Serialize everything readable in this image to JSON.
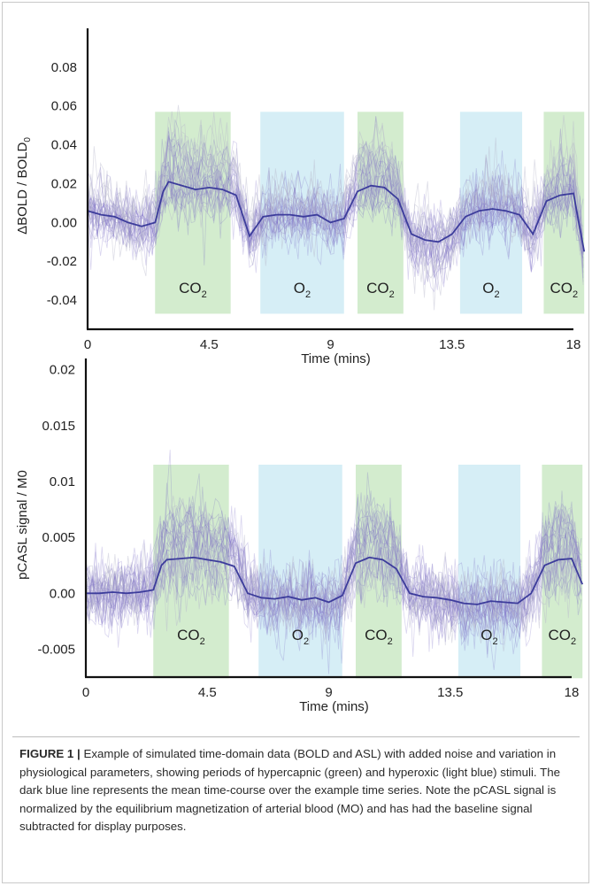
{
  "chart_data": [
    {
      "type": "line",
      "panel": "bold",
      "ylabel": "ΔBOLD / BOLD",
      "ylabel_sub": "0",
      "xlabel": "Time (mins)",
      "xlim": [
        0,
        18
      ],
      "ylim": [
        -0.055,
        0.1
      ],
      "xticks": [
        0,
        4.5,
        9,
        13.5,
        18
      ],
      "xtick_labels": [
        "0",
        "4.5",
        "9",
        "13.5",
        "18"
      ],
      "yticks": [
        -0.04,
        -0.02,
        0.0,
        0.02,
        0.04,
        0.06,
        0.08
      ],
      "ytick_labels": [
        "-0.04",
        "-0.02",
        "0.00",
        "0.02",
        "0.04",
        "0.06",
        "0.08"
      ],
      "stimuli_ylim": [
        -0.047,
        0.057
      ],
      "stimuli": [
        {
          "label": "CO",
          "sub": "2",
          "start": 2.5,
          "end": 5.3,
          "color": "#d3ecce"
        },
        {
          "label": "O",
          "sub": "2",
          "start": 6.4,
          "end": 9.5,
          "color": "#d6eef6"
        },
        {
          "label": "CO",
          "sub": "2",
          "start": 10.0,
          "end": 11.7,
          "color": "#d3ecce"
        },
        {
          "label": "O",
          "sub": "2",
          "start": 13.8,
          "end": 16.1,
          "color": "#d6eef6"
        },
        {
          "label": "CO",
          "sub": "2",
          "start": 16.9,
          "end": 18.4,
          "color": "#d3ecce"
        }
      ],
      "series": [
        {
          "x": [
            0,
            0.5,
            1,
            1.5,
            2,
            2.5,
            2.8,
            3.0,
            3.5,
            4,
            4.5,
            5,
            5.5,
            6,
            6.5,
            7,
            7.5,
            8,
            8.5,
            9,
            9.5,
            10,
            10.5,
            11,
            11.5,
            12,
            12.5,
            13,
            13.5,
            14,
            14.5,
            15,
            15.5,
            16,
            16.5,
            17,
            17.5,
            18,
            18.4
          ],
          "values": [
            0.006,
            0.004,
            0.003,
            0.0,
            -0.002,
            0.0,
            0.016,
            0.021,
            0.019,
            0.017,
            0.018,
            0.017,
            0.014,
            -0.007,
            0.003,
            0.004,
            0.004,
            0.003,
            0.004,
            0.0,
            0.002,
            0.016,
            0.019,
            0.018,
            0.012,
            -0.006,
            -0.009,
            -0.01,
            -0.006,
            0.003,
            0.006,
            0.007,
            0.006,
            0.004,
            -0.006,
            0.011,
            0.014,
            0.015,
            -0.015
          ],
          "color": "#3c3c9b"
        }
      ]
    },
    {
      "type": "line",
      "panel": "asl",
      "ylabel": "pCASL signal / M0",
      "xlabel": "Time (mins)",
      "xlim": [
        0,
        18
      ],
      "ylim": [
        -0.0075,
        0.021
      ],
      "xticks": [
        0,
        4.5,
        9,
        13.5,
        18
      ],
      "xtick_labels": [
        "0",
        "4.5",
        "9",
        "13.5",
        "18"
      ],
      "yticks": [
        -0.005,
        0.0,
        0.005,
        0.01,
        0.015,
        0.02
      ],
      "ytick_labels": [
        "-0.005",
        "0.00",
        "0.005",
        "0.01",
        "0.015",
        "0.02"
      ],
      "stimuli_ylim": [
        -0.0076,
        0.0115
      ],
      "stimuli": [
        {
          "label": "CO",
          "sub": "2",
          "start": 2.5,
          "end": 5.3,
          "color": "#d3ecce"
        },
        {
          "label": "O",
          "sub": "2",
          "start": 6.4,
          "end": 9.5,
          "color": "#d6eef6"
        },
        {
          "label": "CO",
          "sub": "2",
          "start": 10.0,
          "end": 11.7,
          "color": "#d3ecce"
        },
        {
          "label": "O",
          "sub": "2",
          "start": 13.8,
          "end": 16.1,
          "color": "#d6eef6"
        },
        {
          "label": "CO",
          "sub": "2",
          "start": 16.9,
          "end": 18.4,
          "color": "#d3ecce"
        }
      ],
      "series": [
        {
          "x": [
            0,
            0.5,
            1,
            1.5,
            2,
            2.5,
            2.8,
            3.0,
            3.5,
            4,
            4.5,
            5,
            5.5,
            6,
            6.5,
            7,
            7.5,
            8,
            8.5,
            9,
            9.5,
            10,
            10.5,
            11,
            11.5,
            12,
            12.5,
            13,
            13.5,
            14,
            14.5,
            15,
            15.5,
            16,
            16.5,
            17,
            17.5,
            18,
            18.4
          ],
          "values": [
            0.0,
            0.0,
            0.0001,
            0.0,
            0.0001,
            0.0003,
            0.0025,
            0.003,
            0.0031,
            0.0032,
            0.003,
            0.0028,
            0.0024,
            0.0,
            -0.0004,
            -0.0005,
            -0.0003,
            -0.0006,
            -0.0004,
            -0.0008,
            -0.0002,
            0.0027,
            0.0032,
            0.003,
            0.0022,
            0.0,
            -0.0003,
            -0.0004,
            -0.0006,
            -0.0009,
            -0.001,
            -0.0007,
            -0.0008,
            -0.0009,
            0.0,
            0.0025,
            0.003,
            0.0031,
            0.0008
          ],
          "color": "#3c3c9b"
        }
      ]
    }
  ],
  "caption": {
    "label": "FIGURE 1 |",
    "text": "Example of simulated time-domain data (BOLD and ASL) with added noise and variation in physiological parameters, showing periods of hypercapnic (green) and hyperoxic (light blue) stimuli. The dark blue line represents the mean time-course over the example time series. Note the pCASL signal is normalized by the equilibrium magnetization of arterial blood (MO) and has had the baseline signal subtracted for display purposes."
  },
  "colors": {
    "co2_band": "#d3ecce",
    "o2_band": "#d6eef6",
    "mean_line": "#3c3c9b",
    "trace_purple": "#7a6cc4",
    "trace_grey": "#b9b9cc"
  }
}
